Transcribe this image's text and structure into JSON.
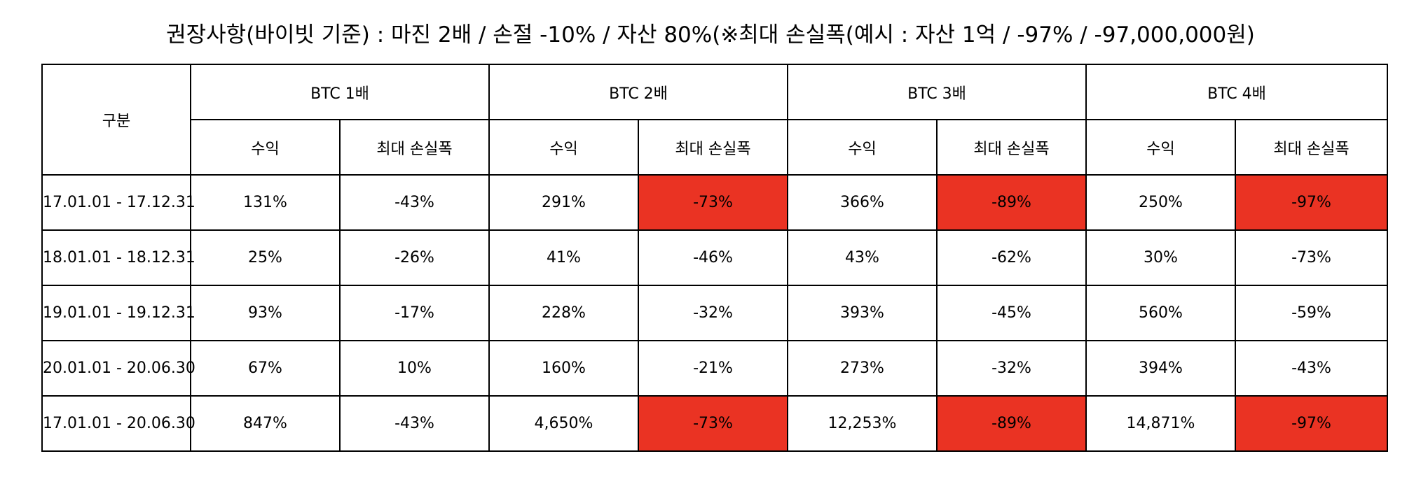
{
  "title": "권장사항(바이빗 기준) : 마진 2배 / 손절 -10% / 자산 80%(※최대 손실폭(예시 : 자산 1억 / -97% / -97,000,000원)",
  "table": {
    "corner_label": "구분",
    "groups": [
      "BTC 1배",
      "BTC 2배",
      "BTC 3배",
      "BTC 4배"
    ],
    "subheaders": [
      "수익",
      "최대 손실폭"
    ],
    "rows": [
      {
        "period": "17.01.01  -  17.12.31",
        "cells": [
          "131%",
          "-43%",
          "291%",
          "-73%",
          "366%",
          "-89%",
          "250%",
          "-97%"
        ]
      },
      {
        "period": "18.01.01  -  18.12.31",
        "cells": [
          "25%",
          "-26%",
          "41%",
          "-46%",
          "43%",
          "-62%",
          "30%",
          "-73%"
        ]
      },
      {
        "period": "19.01.01  -  19.12.31",
        "cells": [
          "93%",
          "-17%",
          "228%",
          "-32%",
          "393%",
          "-45%",
          "560%",
          "-59%"
        ]
      },
      {
        "period": "20.01.01  -  20.06.30",
        "cells": [
          "67%",
          "10%",
          "160%",
          "-21%",
          "273%",
          "-32%",
          "394%",
          "-43%"
        ]
      },
      {
        "period": "17.01.01  -  20.06.30",
        "cells": [
          "847%",
          "-43%",
          "4,650%",
          "-73%",
          "12,253%",
          "-89%",
          "14,871%",
          "-97%"
        ]
      }
    ]
  },
  "colors": {
    "highlight": "#ea3323",
    "border": "#000000",
    "background": "#ffffff"
  }
}
